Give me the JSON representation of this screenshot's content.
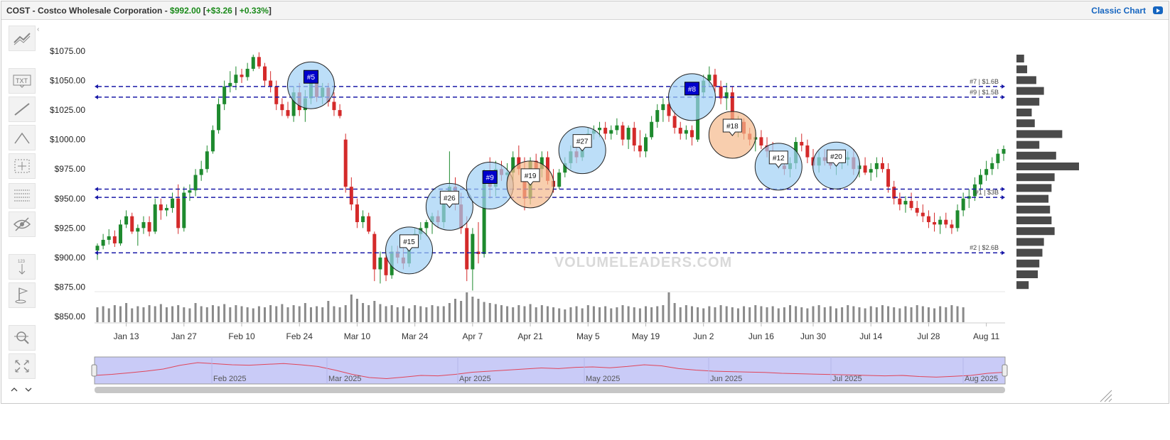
{
  "header": {
    "ticker_name": "COST - Costco Wholesale Corporation",
    "separator": " - ",
    "price": "$992.00",
    "open_bracket": "[",
    "change": "+$3.26",
    "pipe": "|",
    "change_pct": "+0.33%",
    "close_bracket": "]",
    "classic_chart_label": "Classic Chart"
  },
  "toolbar": {
    "tools": [
      "trend-tool",
      "text-tool",
      "line-tool",
      "abc-pattern-tool",
      "crosshair-tool",
      "fibonacci-tool",
      "hide-tool",
      "measure-tool",
      "flag-tool",
      "zoom-tool",
      "fullscreen-tool"
    ],
    "text_tool_label": "TXT"
  },
  "watermark": "VOLUMELEADERS.COM",
  "colors": {
    "up": "#1e8a2e",
    "down": "#d42a2a",
    "level_line": "#1a1aa8",
    "bubble_blue": "#9fd0f5",
    "bubble_orange": "#f5b98c",
    "bubble_rank_top": "#0000cc",
    "navigator_fill": "#c9cbf7",
    "navigator_line": "#e0455a",
    "volume_bar": "#8a8a8a",
    "profile_bar": "#4a4a4a"
  },
  "chart_data": {
    "type": "candlestick",
    "title": "COST - Costco Wholesale Corporation",
    "ylim": [
      850,
      1080
    ],
    "y_ticks": [
      "$1075.00",
      "$1050.00",
      "$1025.00",
      "$1000.00",
      "$975.00",
      "$950.00",
      "$925.00",
      "$900.00",
      "$875.00",
      "$850.00"
    ],
    "y_tick_values": [
      1075,
      1050,
      1025,
      1000,
      975,
      950,
      925,
      900,
      875,
      850
    ],
    "x_ticks": [
      "Jan 13",
      "Jan 27",
      "Feb 10",
      "Feb 24",
      "Mar 10",
      "Mar 24",
      "Apr 7",
      "Apr 21",
      "May 5",
      "May 19",
      "Jun 2",
      "Jun 16",
      "Jun 30",
      "Jul 14",
      "Jul 28",
      "Aug 11"
    ],
    "x_tick_day_index": [
      5,
      15,
      25,
      35,
      45,
      55,
      65,
      75,
      85,
      95,
      105,
      115,
      124,
      134,
      144,
      154
    ],
    "price_levels": [
      {
        "label": "#7 | $1.6B",
        "price": 1045
      },
      {
        "label": "#9 | $1.5B",
        "price": 1036
      },
      {
        "label": "",
        "price": 958
      },
      {
        "label": "#1 | $3B",
        "price": 951
      },
      {
        "label": "#2 | $2.6B",
        "price": 904
      }
    ],
    "bubbles": [
      {
        "label": "#5",
        "day": 37,
        "price": 1046,
        "color": "blue",
        "top_rank": true
      },
      {
        "label": "#15",
        "day": 54,
        "price": 906,
        "color": "blue",
        "top_rank": false
      },
      {
        "label": "#26",
        "day": 61,
        "price": 943,
        "color": "blue",
        "top_rank": false
      },
      {
        "label": "#9",
        "day": 68,
        "price": 961,
        "color": "blue",
        "top_rank": true
      },
      {
        "label": "#19",
        "day": 75,
        "price": 962,
        "color": "orange",
        "top_rank": false
      },
      {
        "label": "#27",
        "day": 84,
        "price": 991,
        "color": "blue",
        "top_rank": false
      },
      {
        "label": "#8",
        "day": 103,
        "price": 1036,
        "color": "blue",
        "top_rank": true
      },
      {
        "label": "#18",
        "day": 110,
        "price": 1004,
        "color": "orange",
        "top_rank": false
      },
      {
        "label": "#12",
        "day": 118,
        "price": 977,
        "color": "blue",
        "top_rank": false
      },
      {
        "label": "#20",
        "day": 128,
        "price": 978,
        "color": "blue",
        "top_rank": false
      }
    ],
    "candles": [
      [
        906,
        912,
        898,
        910
      ],
      [
        910,
        920,
        907,
        915
      ],
      [
        915,
        924,
        911,
        918
      ],
      [
        918,
        923,
        909,
        912
      ],
      [
        912,
        932,
        910,
        928
      ],
      [
        928,
        940,
        925,
        935
      ],
      [
        935,
        938,
        920,
        922
      ],
      [
        922,
        928,
        910,
        925
      ],
      [
        925,
        935,
        920,
        930
      ],
      [
        930,
        935,
        918,
        922
      ],
      [
        922,
        950,
        920,
        945
      ],
      [
        945,
        950,
        932,
        940
      ],
      [
        940,
        945,
        935,
        942
      ],
      [
        942,
        955,
        938,
        950
      ],
      [
        950,
        962,
        920,
        925
      ],
      [
        925,
        960,
        922,
        955
      ],
      [
        955,
        962,
        948,
        957
      ],
      [
        957,
        975,
        952,
        970
      ],
      [
        970,
        982,
        965,
        975
      ],
      [
        975,
        995,
        972,
        990
      ],
      [
        990,
        1012,
        988,
        1008
      ],
      [
        1008,
        1035,
        1005,
        1030
      ],
      [
        1030,
        1050,
        1025,
        1045
      ],
      [
        1045,
        1058,
        1040,
        1048
      ],
      [
        1048,
        1062,
        1042,
        1055
      ],
      [
        1055,
        1060,
        1048,
        1053
      ],
      [
        1053,
        1065,
        1050,
        1060
      ],
      [
        1060,
        1072,
        1058,
        1070
      ],
      [
        1070,
        1074,
        1060,
        1062
      ],
      [
        1062,
        1065,
        1045,
        1050
      ],
      [
        1050,
        1058,
        1040,
        1045
      ],
      [
        1045,
        1050,
        1025,
        1030
      ],
      [
        1030,
        1035,
        1020,
        1025
      ],
      [
        1025,
        1032,
        1018,
        1020
      ],
      [
        1020,
        1045,
        1015,
        1040
      ],
      [
        1040,
        1048,
        1020,
        1025
      ],
      [
        1025,
        1042,
        1015,
        1035
      ],
      [
        1035,
        1052,
        1030,
        1048
      ],
      [
        1048,
        1050,
        1032,
        1036
      ],
      [
        1036,
        1048,
        1030,
        1044
      ],
      [
        1044,
        1048,
        1028,
        1032
      ],
      [
        1032,
        1040,
        1020,
        1025
      ],
      [
        1025,
        1030,
        1018,
        1020
      ],
      [
        1000,
        1005,
        955,
        960
      ],
      [
        960,
        968,
        940,
        945
      ],
      [
        945,
        950,
        925,
        930
      ],
      [
        930,
        940,
        925,
        935
      ],
      [
        935,
        938,
        920,
        922
      ],
      [
        920,
        922,
        880,
        890
      ],
      [
        890,
        905,
        878,
        900
      ],
      [
        900,
        905,
        880,
        885
      ],
      [
        885,
        910,
        882,
        905
      ],
      [
        905,
        910,
        895,
        900
      ],
      [
        900,
        908,
        890,
        895
      ],
      [
        895,
        915,
        892,
        912
      ],
      [
        912,
        925,
        908,
        920
      ],
      [
        920,
        930,
        915,
        925
      ],
      [
        925,
        932,
        918,
        930
      ],
      [
        930,
        938,
        920,
        935
      ],
      [
        935,
        940,
        925,
        930
      ],
      [
        930,
        955,
        925,
        950
      ],
      [
        950,
        990,
        945,
        960
      ],
      [
        960,
        968,
        940,
        945
      ],
      [
        945,
        955,
        920,
        925
      ],
      [
        925,
        935,
        880,
        890
      ],
      [
        890,
        925,
        872,
        920
      ],
      [
        905,
        930,
        895,
        903
      ],
      [
        903,
        975,
        900,
        965
      ],
      [
        965,
        985,
        950,
        960
      ],
      [
        960,
        982,
        952,
        975
      ],
      [
        975,
        982,
        965,
        970
      ],
      [
        970,
        980,
        960,
        972
      ],
      [
        972,
        990,
        965,
        985
      ],
      [
        985,
        995,
        970,
        975
      ],
      [
        975,
        985,
        940,
        950
      ],
      [
        950,
        985,
        945,
        982
      ],
      [
        982,
        988,
        970,
        975
      ],
      [
        975,
        990,
        968,
        985
      ],
      [
        985,
        990,
        962,
        965
      ],
      [
        965,
        975,
        955,
        960
      ],
      [
        960,
        975,
        958,
        972
      ],
      [
        972,
        985,
        968,
        980
      ],
      [
        980,
        995,
        975,
        990
      ],
      [
        990,
        998,
        980,
        985
      ],
      [
        985,
        1002,
        982,
        1000
      ],
      [
        1000,
        1010,
        995,
        1005
      ],
      [
        1005,
        1012,
        1000,
        1008
      ],
      [
        1008,
        1015,
        1002,
        1010
      ],
      [
        1010,
        1015,
        1000,
        1005
      ],
      [
        1005,
        1012,
        1000,
        1008
      ],
      [
        1008,
        1018,
        1004,
        1012
      ],
      [
        1012,
        1015,
        995,
        1000
      ],
      [
        1000,
        1012,
        992,
        1010
      ],
      [
        1010,
        1015,
        990,
        995
      ],
      [
        995,
        1008,
        985,
        990
      ],
      [
        990,
        1005,
        985,
        1002
      ],
      [
        1002,
        1020,
        1000,
        1015
      ],
      [
        1015,
        1030,
        1010,
        1025
      ],
      [
        1025,
        1035,
        1015,
        1030
      ],
      [
        1030,
        1032,
        1015,
        1020
      ],
      [
        1020,
        1025,
        1005,
        1010
      ],
      [
        1010,
        1015,
        1000,
        1005
      ],
      [
        1005,
        1012,
        1000,
        1008
      ],
      [
        1008,
        1012,
        995,
        1002
      ],
      [
        1000,
        1045,
        998,
        1040
      ],
      [
        1040,
        1055,
        1035,
        1050
      ],
      [
        1050,
        1062,
        1045,
        1055
      ],
      [
        1055,
        1060,
        1040,
        1045
      ],
      [
        1045,
        1050,
        1030,
        1035
      ],
      [
        1035,
        1048,
        1025,
        1040
      ],
      [
        1040,
        1045,
        1005,
        1010
      ],
      [
        1010,
        1020,
        1002,
        1015
      ],
      [
        1015,
        1018,
        1000,
        1005
      ],
      [
        1005,
        1010,
        995,
        1000
      ],
      [
        1000,
        1008,
        990,
        1002
      ],
      [
        1002,
        1008,
        992,
        995
      ],
      [
        995,
        1002,
        985,
        990
      ],
      [
        990,
        998,
        980,
        985
      ],
      [
        985,
        990,
        975,
        978
      ],
      [
        978,
        985,
        970,
        975
      ],
      [
        975,
        985,
        968,
        980
      ],
      [
        980,
        1002,
        975,
        998
      ],
      [
        998,
        1005,
        990,
        995
      ],
      [
        995,
        1000,
        980,
        985
      ],
      [
        985,
        992,
        975,
        978
      ],
      [
        978,
        990,
        972,
        985
      ],
      [
        985,
        992,
        978,
        982
      ],
      [
        982,
        988,
        975,
        978
      ],
      [
        978,
        985,
        970,
        980
      ],
      [
        980,
        988,
        975,
        983
      ],
      [
        983,
        990,
        978,
        985
      ],
      [
        985,
        992,
        970,
        975
      ],
      [
        975,
        982,
        968,
        978
      ],
      [
        978,
        985,
        970,
        972
      ],
      [
        972,
        980,
        965,
        975
      ],
      [
        975,
        985,
        968,
        980
      ],
      [
        980,
        985,
        972,
        975
      ],
      [
        975,
        980,
        955,
        960
      ],
      [
        960,
        965,
        945,
        950
      ],
      [
        950,
        955,
        940,
        945
      ],
      [
        945,
        952,
        938,
        948
      ],
      [
        948,
        955,
        940,
        942
      ],
      [
        942,
        948,
        935,
        938
      ],
      [
        938,
        945,
        930,
        935
      ],
      [
        935,
        940,
        925,
        930
      ],
      [
        930,
        938,
        922,
        928
      ],
      [
        928,
        935,
        920,
        932
      ],
      [
        932,
        938,
        925,
        928
      ],
      [
        928,
        932,
        920,
        925
      ],
      [
        925,
        945,
        922,
        940
      ],
      [
        940,
        955,
        935,
        950
      ],
      [
        950,
        958,
        942,
        952
      ],
      [
        952,
        968,
        948,
        962
      ],
      [
        962,
        975,
        958,
        970
      ],
      [
        970,
        982,
        965,
        975
      ],
      [
        975,
        985,
        970,
        980
      ],
      [
        980,
        992,
        975,
        988
      ],
      [
        988,
        995,
        982,
        992
      ]
    ],
    "volume": [
      14,
      15,
      13,
      16,
      15,
      18,
      13,
      15,
      14,
      16,
      15,
      17,
      14,
      15,
      16,
      14,
      13,
      18,
      15,
      14,
      16,
      15,
      17,
      14,
      16,
      15,
      14,
      13,
      15,
      14,
      16,
      15,
      17,
      14,
      16,
      15,
      18,
      14,
      15,
      14,
      20,
      15,
      14,
      16,
      26,
      22,
      18,
      16,
      20,
      17,
      15,
      16,
      14,
      15,
      13,
      16,
      15,
      14,
      16,
      15,
      15,
      18,
      22,
      20,
      28,
      24,
      22,
      19,
      18,
      17,
      16,
      15,
      14,
      16,
      15,
      17,
      14,
      16,
      15,
      14,
      13,
      12,
      14,
      15,
      13,
      16,
      15,
      14,
      15,
      13,
      14,
      16,
      15,
      14,
      13,
      15,
      14,
      15,
      16,
      28,
      18,
      14,
      16,
      15,
      14,
      13,
      15,
      14,
      16,
      15,
      14,
      13,
      15,
      14,
      16,
      15,
      14,
      15,
      13,
      14,
      16,
      15,
      14,
      13,
      15,
      16,
      14,
      15,
      13,
      14,
      16,
      15,
      14,
      13,
      15,
      14,
      16,
      15,
      14,
      13,
      15,
      14,
      16,
      15,
      14,
      13,
      15,
      14,
      16,
      15,
      14
    ],
    "volume_profile": [
      10,
      14,
      26,
      36,
      30,
      20,
      24,
      60,
      30,
      52,
      82,
      50,
      46,
      42,
      44,
      46,
      50,
      36,
      34,
      30,
      28,
      16
    ],
    "navigator": {
      "labels": [
        "Feb 2025",
        "Mar 2025",
        "Apr 2025",
        "May 2025",
        "Jun 2025",
        "Jul 2025",
        "Aug 2025"
      ],
      "series": [
        0.3,
        0.35,
        0.42,
        0.5,
        0.6,
        0.78,
        0.9,
        0.85,
        0.8,
        0.78,
        0.82,
        0.86,
        0.8,
        0.72,
        0.55,
        0.35,
        0.2,
        0.15,
        0.22,
        0.3,
        0.28,
        0.35,
        0.45,
        0.5,
        0.55,
        0.6,
        0.65,
        0.62,
        0.68,
        0.7,
        0.66,
        0.72,
        0.8,
        0.75,
        0.62,
        0.55,
        0.5,
        0.48,
        0.46,
        0.44,
        0.4,
        0.38,
        0.36,
        0.34,
        0.32,
        0.3,
        0.28,
        0.3,
        0.25,
        0.22,
        0.26,
        0.3,
        0.4,
        0.45
      ]
    }
  }
}
